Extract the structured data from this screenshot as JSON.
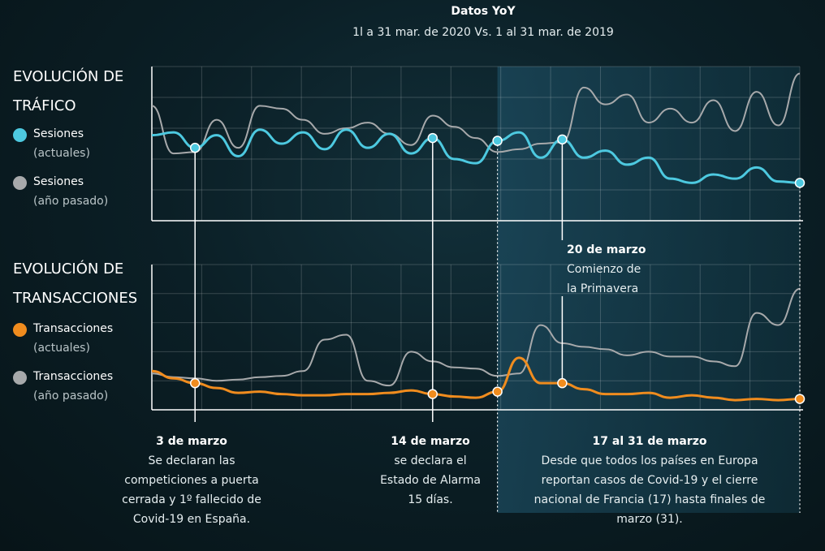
{
  "header": {
    "title": "Datos YoY",
    "subtitle": "1l a 31 mar. de 2020 Vs. 1 al 31 mar. de 2019"
  },
  "traffic": {
    "title_line1": "EVOLUCIÓN DE",
    "title_line2": "TRÁFICO",
    "legend": [
      {
        "label": "Sesiones",
        "sub": "(actuales)",
        "color": "#4dc9e0"
      },
      {
        "label": "Sesiones",
        "sub": "(año pasado)",
        "color": "#a7a9ab"
      }
    ]
  },
  "transactions": {
    "title_line1": "EVOLUCIÓN DE",
    "title_line2": "TRANSACCIONES",
    "legend": [
      {
        "label": "Transacciones",
        "sub": "(actuales)",
        "color": "#f08c1e"
      },
      {
        "label": "Transacciones",
        "sub": "(año pasado)",
        "color": "#a7a9ab"
      }
    ]
  },
  "annotations": {
    "mar3": {
      "title": "3 de marzo",
      "line1": "Se declaran las",
      "line2": "competiciones a puerta",
      "line3": "cerrada y 1º fallecido de",
      "line4": "Covid-19 en España."
    },
    "mar14": {
      "title": "14 de marzo",
      "line1": "se declara el",
      "line2": "Estado de Alarma",
      "line3": "15 días."
    },
    "mar17_31": {
      "title": "17 al 31 de marzo",
      "line1": "Desde que todos los países en Europa",
      "line2": "reportan casos de Covid-19 y el cierre",
      "line3": "nacional de Francia (17) hasta finales de",
      "line4": "marzo (31)."
    },
    "mar20": {
      "title": "20 de marzo",
      "line1": "Comienzo de",
      "line2": "la Primavera"
    }
  },
  "chart_data": [
    {
      "type": "line",
      "title": "EVOLUCIÓN DE TRÁFICO",
      "x": [
        1,
        2,
        3,
        4,
        5,
        6,
        7,
        8,
        9,
        10,
        11,
        12,
        13,
        14,
        15,
        16,
        17,
        18,
        19,
        20,
        21,
        22,
        23,
        24,
        25,
        26,
        27,
        28,
        29,
        30,
        31
      ],
      "series": [
        {
          "name": "Sesiones (actuales)",
          "color": "#4dc9e0",
          "values": [
            61,
            63,
            52,
            61,
            46,
            65,
            55,
            63,
            51,
            65,
            52,
            62,
            48,
            59,
            44,
            41,
            57,
            63,
            45,
            58,
            45,
            50,
            40,
            45,
            30,
            27,
            33,
            30,
            38,
            28,
            27
          ]
        },
        {
          "name": "Sesiones (año pasado)",
          "color": "#a7a9ab",
          "values": [
            82,
            48,
            49,
            72,
            52,
            82,
            80,
            72,
            62,
            66,
            70,
            62,
            54,
            75,
            67,
            59,
            49,
            51,
            55,
            56,
            95,
            83,
            90,
            70,
            80,
            70,
            86,
            64,
            92,
            68,
            105
          ]
        }
      ],
      "ylim": [
        0,
        110
      ],
      "highlighted_days": [
        3,
        14,
        17,
        20,
        31
      ],
      "shaded_range": [
        17,
        31
      ]
    },
    {
      "type": "line",
      "title": "EVOLUCIÓN DE TRANSACCIONES",
      "x": [
        1,
        2,
        3,
        4,
        5,
        6,
        7,
        8,
        9,
        10,
        11,
        12,
        13,
        14,
        15,
        16,
        17,
        18,
        19,
        20,
        21,
        22,
        23,
        24,
        25,
        26,
        27,
        28,
        29,
        30,
        31
      ],
      "series": [
        {
          "name": "Transacciones (actuales)",
          "color": "#f08c1e",
          "values": [
            32,
            26,
            22,
            18,
            14,
            15,
            13,
            12,
            12,
            13,
            13,
            14,
            16,
            13,
            11,
            10,
            15,
            43,
            22,
            22,
            17,
            13,
            13,
            14,
            10,
            12,
            10,
            8,
            9,
            8,
            9
          ]
        },
        {
          "name": "Transacciones (año pasado)",
          "color": "#a7a9ab",
          "values": [
            30,
            27,
            26,
            24,
            25,
            27,
            28,
            32,
            58,
            62,
            24,
            20,
            48,
            40,
            35,
            34,
            28,
            30,
            70,
            55,
            52,
            50,
            45,
            48,
            44,
            44,
            40,
            36,
            80,
            70,
            100
          ]
        }
      ],
      "ylim": [
        0,
        120
      ],
      "highlighted_days": [
        3,
        14,
        17,
        20,
        31
      ],
      "shaded_range": [
        17,
        31
      ]
    }
  ]
}
